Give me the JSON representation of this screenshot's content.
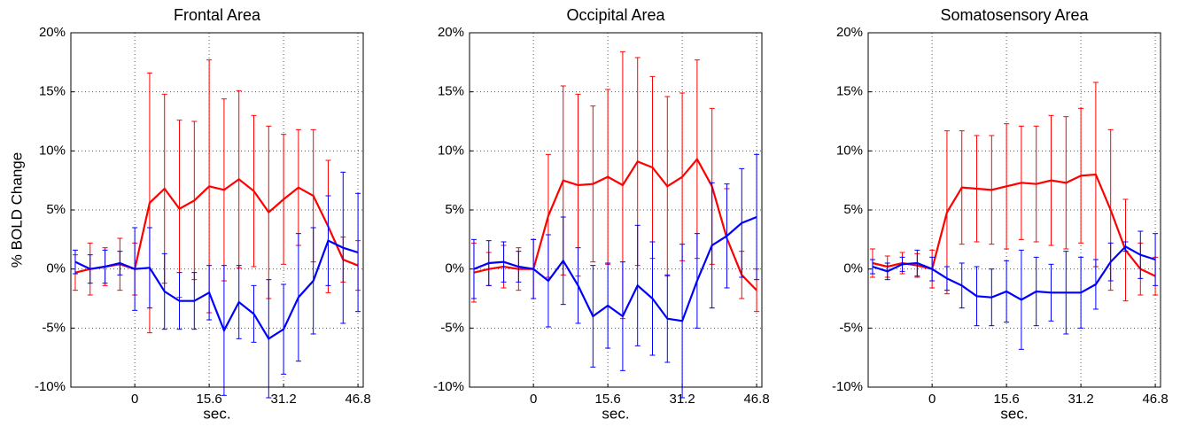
{
  "chart_data": [
    {
      "type": "line",
      "title": "Frontal Area",
      "xlabel": "sec.",
      "ylabel": "% BOLD Change",
      "x": [
        -12.48,
        -9.36,
        -6.24,
        -3.12,
        0,
        3.12,
        6.24,
        9.36,
        12.48,
        15.6,
        18.72,
        21.84,
        24.96,
        28.08,
        31.2,
        34.32,
        37.44,
        40.56,
        43.68,
        46.8
      ],
      "xlim": [
        -13.4,
        47.9
      ],
      "xticks": [
        0,
        15.6,
        31.2,
        46.8
      ],
      "ylim": [
        -10,
        20
      ],
      "yticks": [
        {
          "value": -10,
          "label": "-10%"
        },
        {
          "value": -5,
          "label": "-5%"
        },
        {
          "value": 0,
          "label": "0%"
        },
        {
          "value": 5,
          "label": "5%"
        },
        {
          "value": 10,
          "label": "10%"
        },
        {
          "value": 15,
          "label": "15%"
        },
        {
          "value": 20,
          "label": "20%"
        }
      ],
      "grid": true,
      "series": [
        {
          "color": "#ff0000",
          "values": [
            -0.3,
            0.0,
            0.2,
            0.4,
            0.0,
            5.6,
            6.8,
            5.1,
            5.8,
            7.0,
            6.7,
            7.6,
            6.6,
            4.8,
            5.9,
            6.9,
            6.2,
            3.6,
            0.8,
            0.3
          ],
          "errors": [
            1.5,
            2.2,
            1.6,
            2.2,
            2.2,
            11.0,
            8.0,
            7.5,
            6.7,
            10.7,
            7.7,
            7.5,
            6.4,
            7.3,
            5.5,
            4.9,
            5.6,
            5.6,
            1.9,
            2.1
          ]
        },
        {
          "color": "#0000ff",
          "values": [
            0.6,
            0.0,
            0.2,
            0.5,
            0.0,
            0.1,
            -1.9,
            -2.7,
            -2.7,
            -2.0,
            -5.2,
            -2.8,
            -3.8,
            -5.9,
            -5.1,
            -2.4,
            -1.0,
            2.4,
            1.8,
            1.4
          ],
          "errors": [
            1.0,
            1.2,
            1.4,
            1.0,
            3.5,
            3.4,
            3.2,
            2.4,
            2.4,
            2.3,
            5.5,
            3.1,
            2.4,
            5.0,
            3.8,
            5.4,
            4.5,
            3.8,
            6.4,
            5.0
          ]
        }
      ]
    },
    {
      "type": "line",
      "title": "Occipital Area",
      "xlabel": "sec.",
      "x": [
        -12.48,
        -9.36,
        -6.24,
        -3.12,
        0,
        3.12,
        6.24,
        9.36,
        12.48,
        15.6,
        18.72,
        21.84,
        24.96,
        28.08,
        31.2,
        34.32,
        37.44,
        40.56,
        43.68,
        46.8
      ],
      "xlim": [
        -13.4,
        47.9
      ],
      "xticks": [
        0,
        15.6,
        31.2,
        46.8
      ],
      "ylim": [
        -10,
        20
      ],
      "yticks": [
        {
          "value": -10,
          "label": "-10%"
        },
        {
          "value": -5,
          "label": "-5%"
        },
        {
          "value": 0,
          "label": "0%"
        },
        {
          "value": 5,
          "label": "5%"
        },
        {
          "value": 10,
          "label": "10%"
        },
        {
          "value": 15,
          "label": "15%"
        },
        {
          "value": 20,
          "label": "20%"
        }
      ],
      "grid": true,
      "series": [
        {
          "color": "#ff0000",
          "values": [
            -0.3,
            0.0,
            0.2,
            0.0,
            0.0,
            4.5,
            7.5,
            7.1,
            7.2,
            7.8,
            7.1,
            9.1,
            8.6,
            7.0,
            7.8,
            9.3,
            7.0,
            2.6,
            -0.5,
            -1.8
          ],
          "errors": [
            2.5,
            1.4,
            1.8,
            1.8,
            2.5,
            5.2,
            8.0,
            7.7,
            6.6,
            7.4,
            11.3,
            8.8,
            7.7,
            7.6,
            7.1,
            8.4,
            6.6,
            4.2,
            2.0,
            1.8
          ]
        },
        {
          "color": "#0000ff",
          "values": [
            0.0,
            0.5,
            0.6,
            0.2,
            0.0,
            -1.0,
            0.7,
            -1.4,
            -4.0,
            -3.1,
            -4.0,
            -1.4,
            -2.5,
            -4.2,
            -4.4,
            -1.0,
            2.0,
            2.8,
            3.9,
            4.4
          ],
          "errors": [
            2.5,
            1.9,
            1.7,
            1.3,
            2.5,
            3.9,
            3.7,
            3.2,
            4.3,
            3.6,
            4.6,
            5.1,
            4.8,
            3.7,
            6.5,
            4.0,
            5.3,
            4.4,
            4.6,
            5.3
          ]
        }
      ]
    },
    {
      "type": "line",
      "title": "Somatosensory Area",
      "xlabel": "sec.",
      "x": [
        -12.48,
        -9.36,
        -6.24,
        -3.12,
        0,
        3.12,
        6.24,
        9.36,
        12.48,
        15.6,
        18.72,
        21.84,
        24.96,
        28.08,
        31.2,
        34.32,
        37.44,
        40.56,
        43.68,
        46.8
      ],
      "xlim": [
        -13.4,
        47.9
      ],
      "xticks": [
        0,
        15.6,
        31.2,
        46.8
      ],
      "ylim": [
        -10,
        20
      ],
      "yticks": [
        {
          "value": -10,
          "label": "-10%"
        },
        {
          "value": -5,
          "label": "-5%"
        },
        {
          "value": 0,
          "label": "0%"
        },
        {
          "value": 5,
          "label": "5%"
        },
        {
          "value": 10,
          "label": "10%"
        },
        {
          "value": 15,
          "label": "15%"
        },
        {
          "value": 20,
          "label": "20%"
        }
      ],
      "grid": true,
      "series": [
        {
          "color": "#ff0000",
          "values": [
            0.5,
            0.2,
            0.5,
            0.3,
            0.0,
            4.8,
            6.9,
            6.8,
            6.7,
            7.0,
            7.3,
            7.2,
            7.5,
            7.3,
            7.9,
            8.0,
            5.0,
            1.6,
            0.0,
            -0.6
          ],
          "errors": [
            1.2,
            0.9,
            0.9,
            1.0,
            1.6,
            6.9,
            4.8,
            4.5,
            4.6,
            5.3,
            4.8,
            4.9,
            5.5,
            5.6,
            5.7,
            7.8,
            6.8,
            4.3,
            2.2,
            1.6
          ]
        },
        {
          "color": "#0000ff",
          "values": [
            0.2,
            -0.2,
            0.4,
            0.5,
            0.0,
            -0.8,
            -1.4,
            -2.3,
            -2.4,
            -1.9,
            -2.6,
            -1.9,
            -2.0,
            -2.0,
            -2.0,
            -1.3,
            0.6,
            1.9,
            1.2,
            0.8
          ],
          "errors": [
            0.6,
            0.7,
            0.6,
            1.1,
            1.0,
            1.0,
            1.9,
            2.5,
            2.4,
            2.6,
            4.2,
            2.9,
            2.4,
            3.5,
            3.0,
            2.1,
            1.6,
            0.4,
            2.0,
            2.2
          ]
        }
      ]
    }
  ]
}
